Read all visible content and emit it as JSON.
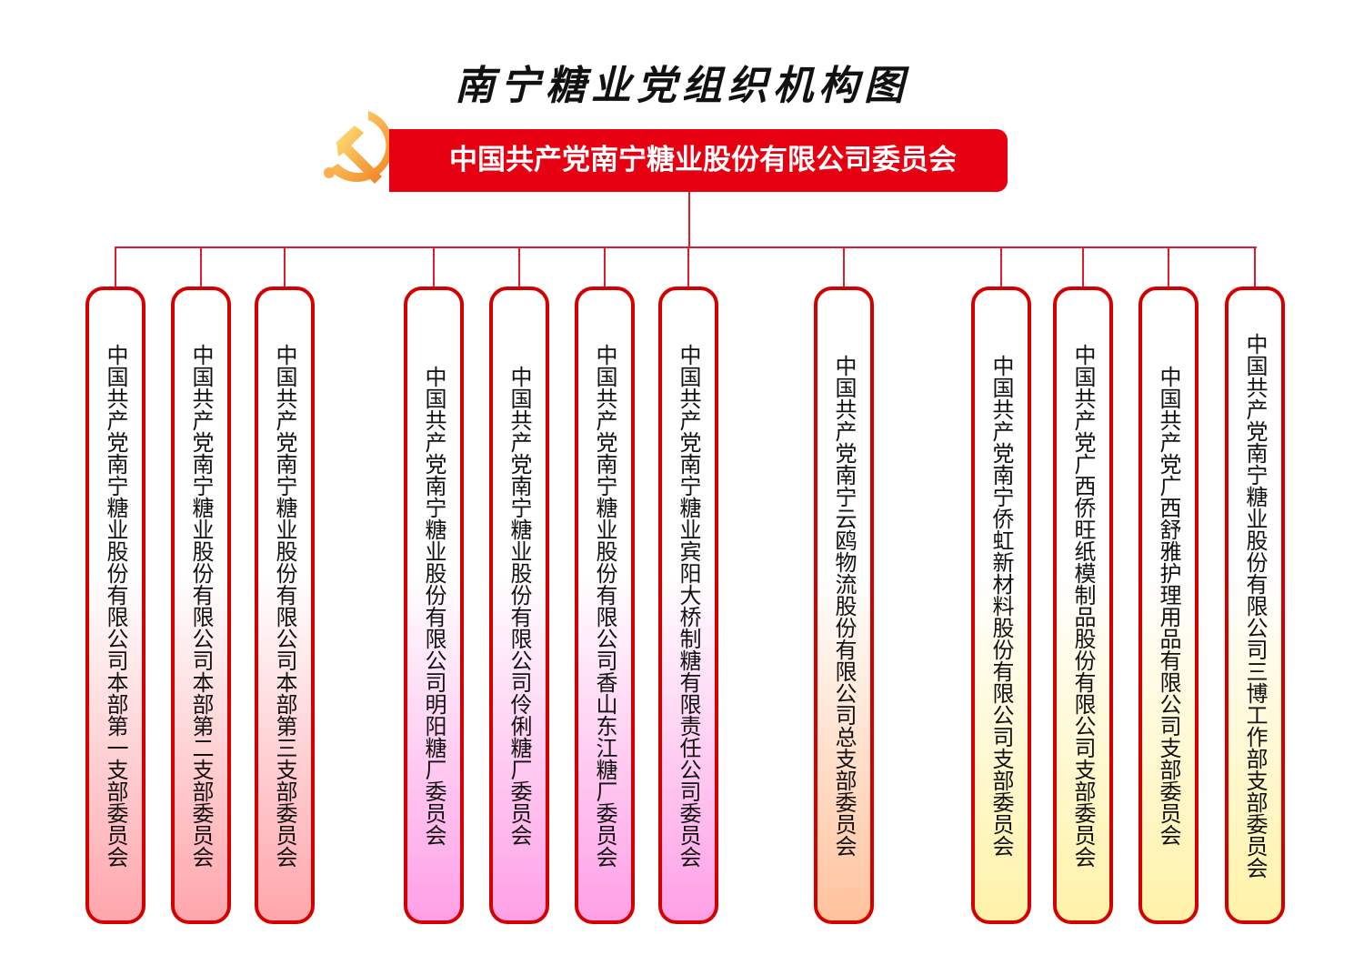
{
  "title": "南宁糖业党组织机构图",
  "root": {
    "label": "中国共产党南宁糖业股份有限公司委员会",
    "icon": "party-emblem-icon",
    "color": "#e60012"
  },
  "colors": {
    "line": "#d81e2a",
    "border": "#d40000",
    "red_group": "#ffa6ac",
    "pink_group": "#ff9fe6",
    "orange_group": "#ffc29c",
    "yellow_group": "#fff2a8"
  },
  "branches": [
    {
      "label": "中国共产党南宁糖业股份有限公司本部第一支部委员会",
      "group": "red"
    },
    {
      "label": "中国共产党南宁糖业股份有限公司本部第二支部委员会",
      "group": "red"
    },
    {
      "label": "中国共产党南宁糖业股份有限公司本部第三支部委员会",
      "group": "red"
    },
    {
      "label": "中国共产党南宁糖业股份有限公司明阳糖厂委员会",
      "group": "pink"
    },
    {
      "label": "中国共产党南宁糖业股份有限公司伶俐糖厂委员会",
      "group": "pink"
    },
    {
      "label": "中国共产党南宁糖业股份有限公司香山东江糖厂委员会",
      "group": "pink"
    },
    {
      "label": "中国共产党南宁糖业宾阳大桥制糖有限责任公司委员会",
      "group": "pink"
    },
    {
      "label": "中国共产党南宁云鸥物流股份有限公司总支部委员会",
      "group": "orange"
    },
    {
      "label": "中国共产党南宁侨虹新材料股份有限公司支部委员会",
      "group": "yellow"
    },
    {
      "label": "中国共产党广西侨旺纸模制品股份有限公司支部委员会",
      "group": "yellow"
    },
    {
      "label": "中国共产党广西舒雅护理用品有限公司支部委员会",
      "group": "yellow"
    },
    {
      "label": "中国共产党南宁糖业股份有限公司三博工作部支部委员会",
      "group": "yellow"
    }
  ]
}
